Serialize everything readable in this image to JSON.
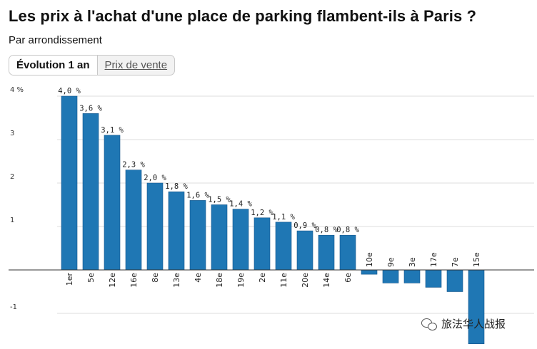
{
  "header": {
    "title": "Les prix à l'achat d'une place de parking flambent-ils à Paris ?",
    "subtitle": "Par arrondissement"
  },
  "toggle": {
    "active_label": "Évolution 1 an",
    "inactive_label": "Prix de vente"
  },
  "colors": {
    "bar": "#1f77b4",
    "bar_stroke": "#15558a",
    "grid": "#dddddd",
    "axis": "#333333"
  },
  "chart_data": {
    "type": "bar",
    "categories": [
      "1er",
      "5e",
      "12e",
      "16e",
      "8e",
      "13e",
      "4e",
      "18e",
      "19e",
      "2e",
      "11e",
      "20e",
      "14e",
      "6e",
      "10e",
      "9e",
      "3e",
      "17e",
      "7e",
      "15e"
    ],
    "values": [
      4.0,
      3.6,
      3.1,
      2.3,
      2.0,
      1.8,
      1.6,
      1.5,
      1.4,
      1.2,
      1.1,
      0.9,
      0.8,
      0.8,
      -0.1,
      -0.3,
      -0.3,
      -0.4,
      -0.5,
      -1.7
    ],
    "data_labels": [
      "4,0 %",
      "3,6 %",
      "3,1 %",
      "2,3 %",
      "2,0 %",
      "1,8 %",
      "1,6 %",
      "1,5 %",
      "1,4 %",
      "1,2 %",
      "1,1 %",
      "0,9 %",
      "0,8 %",
      "0,8 %",
      "",
      "",
      "",
      "",
      "",
      ""
    ],
    "y_ticks": [
      4,
      3,
      2,
      1,
      -1
    ],
    "y_tick_labels": [
      "4 %",
      "3",
      "2",
      "1",
      "-1"
    ],
    "ylim": [
      -1.75,
      4.2
    ],
    "grid": true,
    "title": "",
    "xlabel": "",
    "ylabel": ""
  },
  "watermark": {
    "text": "旅法华人战报",
    "icon": "wechat-icon"
  }
}
